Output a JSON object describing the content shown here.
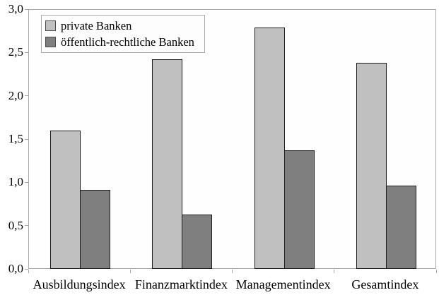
{
  "chart_data": {
    "type": "bar",
    "title": "",
    "xlabel": "",
    "ylabel": "",
    "categories": [
      "Ausbildungsindex",
      "Finanzmarktindex",
      "Managementindex",
      "Gesamtindex"
    ],
    "series": [
      {
        "name": "private Banken",
        "color": "#c0c0c0",
        "values": [
          1.6,
          2.42,
          2.79,
          2.38
        ]
      },
      {
        "name": "öffentlich-rechtliche Banken",
        "color": "#7f7f7f",
        "values": [
          0.91,
          0.63,
          1.37,
          0.96
        ]
      }
    ],
    "ylim": [
      0,
      3
    ],
    "ytick_step": 0.5,
    "ytick_labels": [
      "0,0",
      "0,5",
      "1,0",
      "1,5",
      "2,0",
      "2,5",
      "3,0"
    ],
    "decimal_separator": ",",
    "grid": false,
    "legend_position": "top-left",
    "colors": {
      "bar_outline": "#1c1c1c",
      "plot_frame": "#a9a9a9",
      "background": "#ffffff",
      "text": "#000000"
    }
  }
}
